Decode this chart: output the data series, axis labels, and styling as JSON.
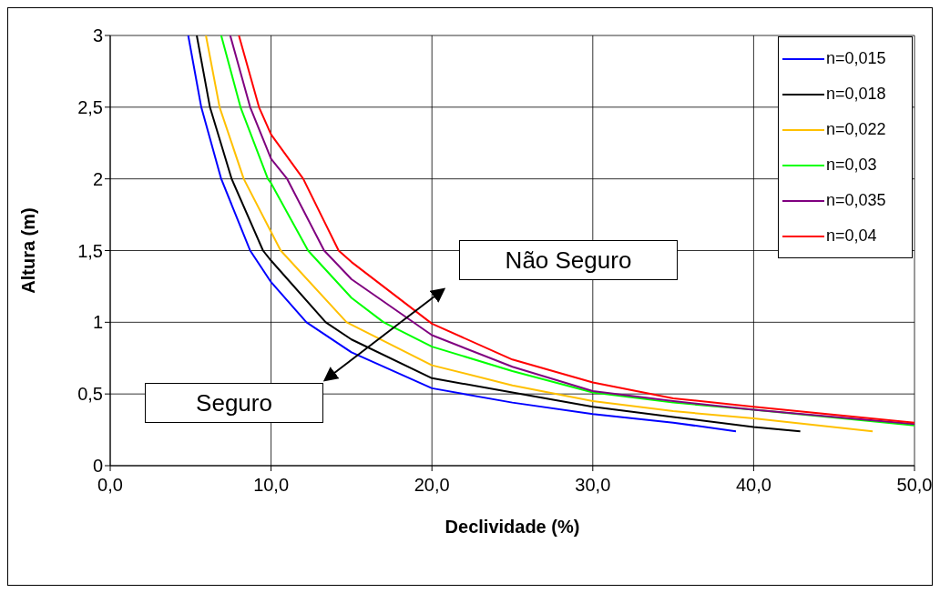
{
  "chart_data": {
    "type": "line",
    "xlabel": "Declividade (%)",
    "ylabel": "Altura (m)",
    "xlim": [
      0,
      50
    ],
    "xticks": [
      {
        "value": 0,
        "label": "0,0"
      },
      {
        "value": 10,
        "label": "10,0"
      },
      {
        "value": 20,
        "label": "20,0"
      },
      {
        "value": 30,
        "label": "30,0"
      },
      {
        "value": 40,
        "label": "40,0"
      },
      {
        "value": 50,
        "label": "50,0"
      }
    ],
    "ylim": [
      0,
      3
    ],
    "yticks": [
      0,
      {
        "value": 0.5,
        "label": "0,5"
      },
      1,
      {
        "value": 1.5,
        "label": "1,5"
      },
      2,
      {
        "value": 2.5,
        "label": "2,5"
      },
      3
    ],
    "grid": true,
    "legend": "top right",
    "marker": "none",
    "line_style": "solid",
    "annotations": [
      "Não Seguro",
      "Seguro"
    ],
    "series": [
      {
        "name": "n=0,015",
        "color": "#0000ff",
        "x": [
          4.85,
          5.66,
          6.9,
          8.7,
          10,
          12.2,
          15,
          20,
          25,
          30,
          35,
          38.9
        ],
        "values": [
          3,
          2.5,
          2,
          1.5,
          1.28,
          1,
          0.79,
          0.54,
          0.44,
          0.36,
          0.3,
          0.24
        ]
      },
      {
        "name": "n=0,018",
        "color": "#000000",
        "x": [
          5.38,
          6.2,
          7.55,
          9.5,
          10,
          13.4,
          15,
          20,
          25,
          30,
          35,
          40,
          42.9
        ],
        "values": [
          3,
          2.5,
          2,
          1.5,
          1.43,
          1,
          0.88,
          0.61,
          0.51,
          0.41,
          0.34,
          0.27,
          0.24
        ]
      },
      {
        "name": "n=0,022",
        "color": "#ffc000",
        "x": [
          5.95,
          6.8,
          8.3,
          10,
          10.6,
          14.7,
          20,
          25,
          30,
          35,
          40,
          47.4
        ],
        "values": [
          3,
          2.5,
          2,
          1.63,
          1.5,
          1,
          0.7,
          0.56,
          0.45,
          0.38,
          0.33,
          0.24
        ]
      },
      {
        "name": "n=0,03",
        "color": "#00ff00",
        "x": [
          6.9,
          8.1,
          9.8,
          10,
          12.3,
          15,
          17,
          20,
          25,
          30,
          35,
          40,
          50
        ],
        "values": [
          3,
          2.5,
          2,
          1.97,
          1.5,
          1.17,
          1,
          0.83,
          0.66,
          0.51,
          0.44,
          0.39,
          0.28
        ]
      },
      {
        "name": "n=0,035",
        "color": "#800080",
        "x": [
          7.46,
          8.7,
          10,
          11,
          13.3,
          15,
          20,
          25,
          30,
          35,
          40,
          50
        ],
        "values": [
          3,
          2.5,
          2.14,
          2,
          1.5,
          1.3,
          0.91,
          0.69,
          0.52,
          0.45,
          0.39,
          0.29
        ]
      },
      {
        "name": "n=0,04",
        "color": "#ff0000",
        "x": [
          8,
          9.25,
          10,
          12,
          14.2,
          15,
          20,
          25,
          30,
          35,
          40,
          50
        ],
        "values": [
          3,
          2.5,
          2.31,
          2,
          1.5,
          1.42,
          0.99,
          0.74,
          0.58,
          0.47,
          0.41,
          0.3
        ]
      }
    ]
  }
}
